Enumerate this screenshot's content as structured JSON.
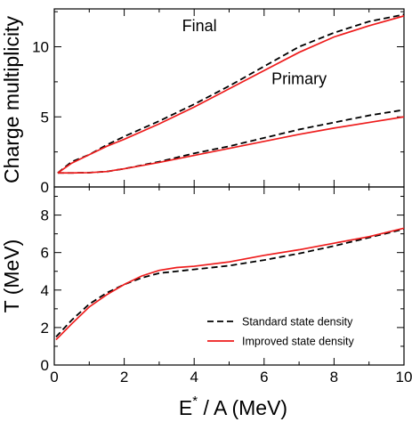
{
  "chart_data": [
    {
      "type": "line",
      "ylabel": "Charge multiplicity",
      "xlim": [
        0,
        10
      ],
      "ylim": [
        0,
        12.7
      ],
      "yticks": [
        0,
        5,
        10
      ],
      "x_minor_step": 1,
      "y_minor_step": 2.5,
      "grid": false,
      "annotations": [
        {
          "text": "Final",
          "x": 4.15,
          "y": 11.1
        },
        {
          "text": "Primary",
          "x": 7.0,
          "y": 7.35
        }
      ],
      "series": [
        {
          "group": "final",
          "style": "dashed",
          "color": "#000000",
          "x": [
            0.1,
            0.5,
            1,
            1.5,
            2,
            3,
            4,
            5,
            6,
            7,
            8,
            9,
            10
          ],
          "y": [
            1.0,
            1.8,
            2.3,
            3.0,
            3.6,
            4.7,
            5.9,
            7.2,
            8.6,
            10.0,
            11.0,
            11.8,
            12.3
          ]
        },
        {
          "group": "final",
          "style": "solid",
          "color": "#ee1c1c",
          "x": [
            0.1,
            0.5,
            1,
            1.5,
            2,
            3,
            4,
            5,
            6,
            7,
            8,
            9,
            10
          ],
          "y": [
            1.0,
            1.7,
            2.3,
            2.9,
            3.4,
            4.5,
            5.7,
            7.0,
            8.3,
            9.6,
            10.7,
            11.5,
            12.2
          ]
        },
        {
          "group": "primary",
          "style": "dashed",
          "color": "#000000",
          "x": [
            0.1,
            0.5,
            1,
            1.5,
            2,
            3,
            4,
            5,
            6,
            7,
            8,
            9,
            10
          ],
          "y": [
            1.0,
            1.0,
            1.02,
            1.1,
            1.3,
            1.8,
            2.4,
            2.9,
            3.5,
            4.1,
            4.6,
            5.1,
            5.5
          ]
        },
        {
          "group": "primary",
          "style": "solid",
          "color": "#ee1c1c",
          "x": [
            0.1,
            0.5,
            1,
            1.5,
            2,
            3,
            4,
            5,
            6,
            7,
            8,
            9,
            10
          ],
          "y": [
            1.0,
            1.0,
            1.02,
            1.1,
            1.3,
            1.75,
            2.25,
            2.75,
            3.25,
            3.75,
            4.2,
            4.6,
            5.0
          ]
        }
      ]
    },
    {
      "type": "line",
      "xlabel_main": "E",
      "xlabel_sup": "*",
      "xlabel_rest": " / A (MeV)",
      "ylabel": "T (MeV)",
      "xlim": [
        0,
        10
      ],
      "ylim": [
        0,
        9.5
      ],
      "xticks": [
        0,
        2,
        4,
        6,
        8,
        10
      ],
      "yticks": [
        0,
        2,
        4,
        6,
        8
      ],
      "x_minor_step": 1,
      "y_minor_step": 1,
      "grid": false,
      "legend_position": "bottom-right",
      "series": [
        {
          "name": "Standard state density",
          "style": "dashed",
          "color": "#000000",
          "x": [
            0.05,
            0.5,
            1,
            1.5,
            2,
            2.5,
            3,
            3.5,
            4,
            5,
            6,
            7,
            8,
            9,
            10
          ],
          "y": [
            1.5,
            2.4,
            3.25,
            3.85,
            4.3,
            4.65,
            4.9,
            5.0,
            5.1,
            5.3,
            5.6,
            5.95,
            6.35,
            6.8,
            7.25
          ]
        },
        {
          "name": "Improved state density",
          "style": "solid",
          "color": "#ee1c1c",
          "x": [
            0.05,
            0.5,
            1,
            1.5,
            2,
            2.5,
            3,
            3.5,
            4,
            5,
            6,
            7,
            8,
            9,
            10
          ],
          "y": [
            1.35,
            2.2,
            3.1,
            3.75,
            4.3,
            4.75,
            5.05,
            5.2,
            5.27,
            5.5,
            5.85,
            6.15,
            6.5,
            6.85,
            7.3
          ]
        }
      ]
    }
  ]
}
